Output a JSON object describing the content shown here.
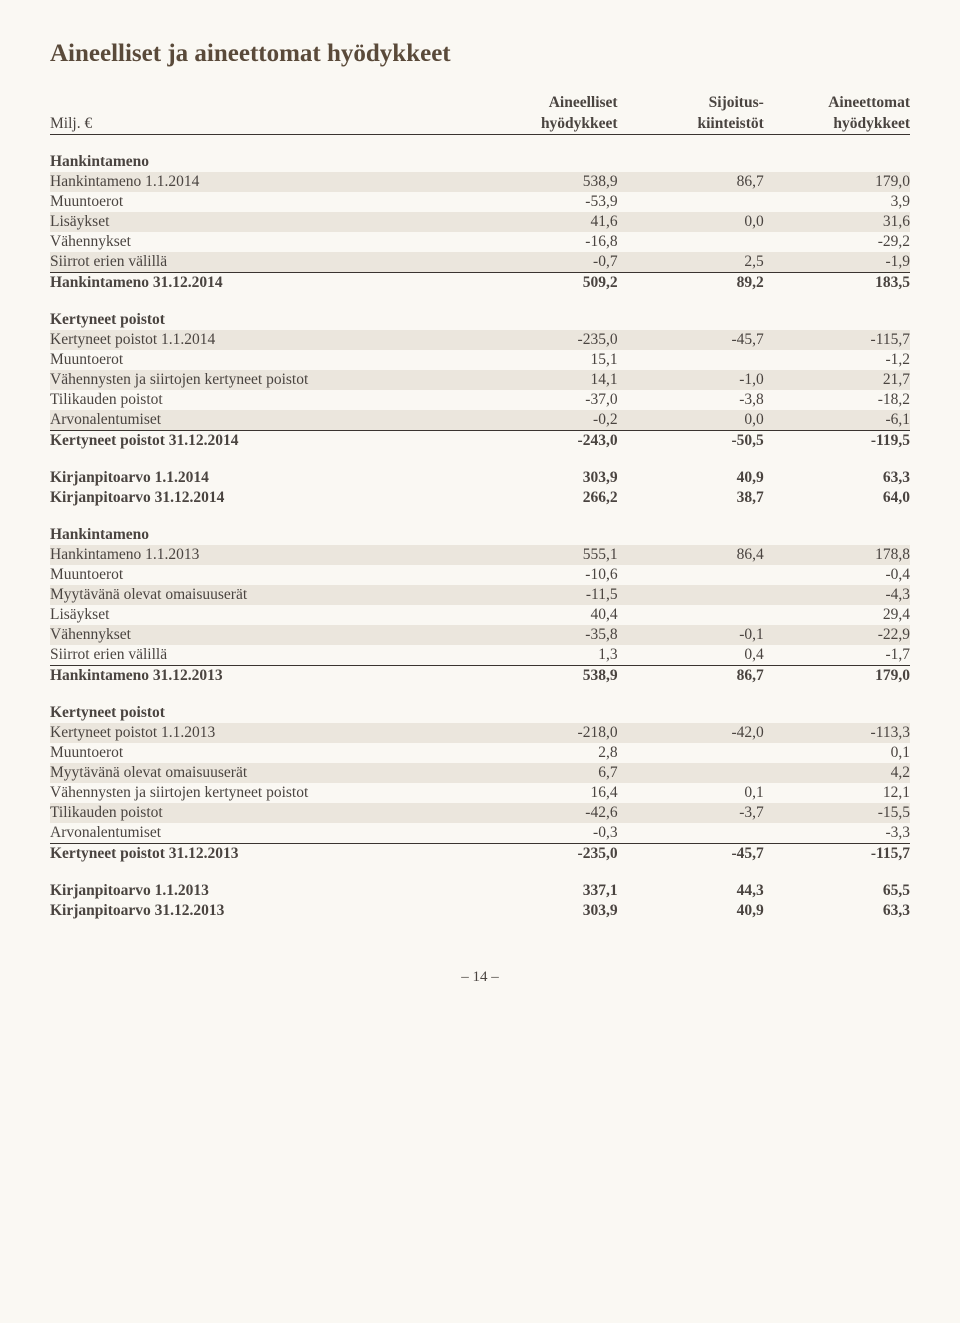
{
  "title": "Aineelliset ja aineettomat hyödykkeet",
  "unit_label": "Milj. €",
  "col1a": "Aineelliset",
  "col1b": "hyödykkeet",
  "col2a": "Sijoitus-",
  "col2b": "kiinteistöt",
  "col3a": "Aineettomat",
  "col3b": "hyödykkeet",
  "rows": [
    {
      "k": "s",
      "l": "Hankintameno"
    },
    {
      "k": "r",
      "sh": 1,
      "l": "Hankintameno 1.1.2014",
      "v": [
        "538,9",
        "86,7",
        "179,0"
      ]
    },
    {
      "k": "r",
      "l": "Muuntoerot",
      "v": [
        "-53,9",
        "",
        "3,9"
      ]
    },
    {
      "k": "r",
      "sh": 1,
      "l": "Lisäykset",
      "v": [
        "41,6",
        "0,0",
        "31,6"
      ]
    },
    {
      "k": "r",
      "l": "Vähennykset",
      "v": [
        "-16,8",
        "",
        "-29,2"
      ]
    },
    {
      "k": "r",
      "sh": 1,
      "l": "Siirrot erien välillä",
      "v": [
        "-0,7",
        "2,5",
        "-1,9"
      ]
    },
    {
      "k": "b",
      "tb": 1,
      "l": "Hankintameno 31.12.2014",
      "v": [
        "509,2",
        "89,2",
        "183,5"
      ]
    },
    {
      "k": "s",
      "l": "Kertyneet poistot"
    },
    {
      "k": "r",
      "sh": 1,
      "l": "Kertyneet poistot 1.1.2014",
      "v": [
        "-235,0",
        "-45,7",
        "-115,7"
      ]
    },
    {
      "k": "r",
      "l": "Muuntoerot",
      "v": [
        "15,1",
        "",
        "-1,2"
      ]
    },
    {
      "k": "r",
      "sh": 1,
      "l": "Vähennysten ja siirtojen kertyneet poistot",
      "v": [
        "14,1",
        "-1,0",
        "21,7"
      ]
    },
    {
      "k": "r",
      "l": "Tilikauden poistot",
      "v": [
        "-37,0",
        "-3,8",
        "-18,2"
      ]
    },
    {
      "k": "r",
      "sh": 1,
      "l": "Arvonalentumiset",
      "v": [
        "-0,2",
        "0,0",
        "-6,1"
      ]
    },
    {
      "k": "b",
      "tb": 1,
      "l": "Kertyneet poistot 31.12.2014",
      "v": [
        "-243,0",
        "-50,5",
        "-119,5"
      ]
    },
    {
      "k": "b",
      "gap": 1,
      "l": "Kirjanpitoarvo 1.1.2014",
      "v": [
        "303,9",
        "40,9",
        "63,3"
      ]
    },
    {
      "k": "b",
      "l": "Kirjanpitoarvo 31.12.2014",
      "v": [
        "266,2",
        "38,7",
        "64,0"
      ]
    },
    {
      "k": "s",
      "l": "Hankintameno"
    },
    {
      "k": "r",
      "sh": 1,
      "l": "Hankintameno 1.1.2013",
      "v": [
        "555,1",
        "86,4",
        "178,8"
      ]
    },
    {
      "k": "r",
      "l": "Muuntoerot",
      "v": [
        "-10,6",
        "",
        "-0,4"
      ]
    },
    {
      "k": "r",
      "sh": 1,
      "l": "Myytävänä olevat omaisuuserät",
      "v": [
        "-11,5",
        "",
        "-4,3"
      ]
    },
    {
      "k": "r",
      "l": "Lisäykset",
      "v": [
        "40,4",
        "",
        "29,4"
      ]
    },
    {
      "k": "r",
      "sh": 1,
      "l": "Vähennykset",
      "v": [
        "-35,8",
        "-0,1",
        "-22,9"
      ]
    },
    {
      "k": "r",
      "l": "Siirrot erien välillä",
      "v": [
        "1,3",
        "0,4",
        "-1,7"
      ]
    },
    {
      "k": "b",
      "tb": 1,
      "l": "Hankintameno 31.12.2013",
      "v": [
        "538,9",
        "86,7",
        "179,0"
      ]
    },
    {
      "k": "s",
      "l": "Kertyneet poistot"
    },
    {
      "k": "r",
      "sh": 1,
      "l": "Kertyneet poistot 1.1.2013",
      "v": [
        "-218,0",
        "-42,0",
        "-113,3"
      ]
    },
    {
      "k": "r",
      "l": "Muuntoerot",
      "v": [
        "2,8",
        "",
        "0,1"
      ]
    },
    {
      "k": "r",
      "sh": 1,
      "l": "Myytävänä olevat omaisuuserät",
      "v": [
        "6,7",
        "",
        "4,2"
      ]
    },
    {
      "k": "r",
      "l": "Vähennysten ja siirtojen kertyneet poistot",
      "v": [
        "16,4",
        "0,1",
        "12,1"
      ]
    },
    {
      "k": "r",
      "sh": 1,
      "l": "Tilikauden poistot",
      "v": [
        "-42,6",
        "-3,7",
        "-15,5"
      ]
    },
    {
      "k": "r",
      "l": "Arvonalentumiset",
      "v": [
        "-0,3",
        "",
        "-3,3"
      ]
    },
    {
      "k": "b",
      "tb": 1,
      "l": "Kertyneet poistot 31.12.2013",
      "v": [
        "-235,0",
        "-45,7",
        "-115,7"
      ]
    },
    {
      "k": "b",
      "gap": 1,
      "l": "Kirjanpitoarvo 1.1.2013",
      "v": [
        "337,1",
        "44,3",
        "65,5"
      ]
    },
    {
      "k": "b",
      "l": "Kirjanpitoarvo 31.12.2013",
      "v": [
        "303,9",
        "40,9",
        "63,3"
      ]
    }
  ],
  "pagenum": "– 14 –"
}
